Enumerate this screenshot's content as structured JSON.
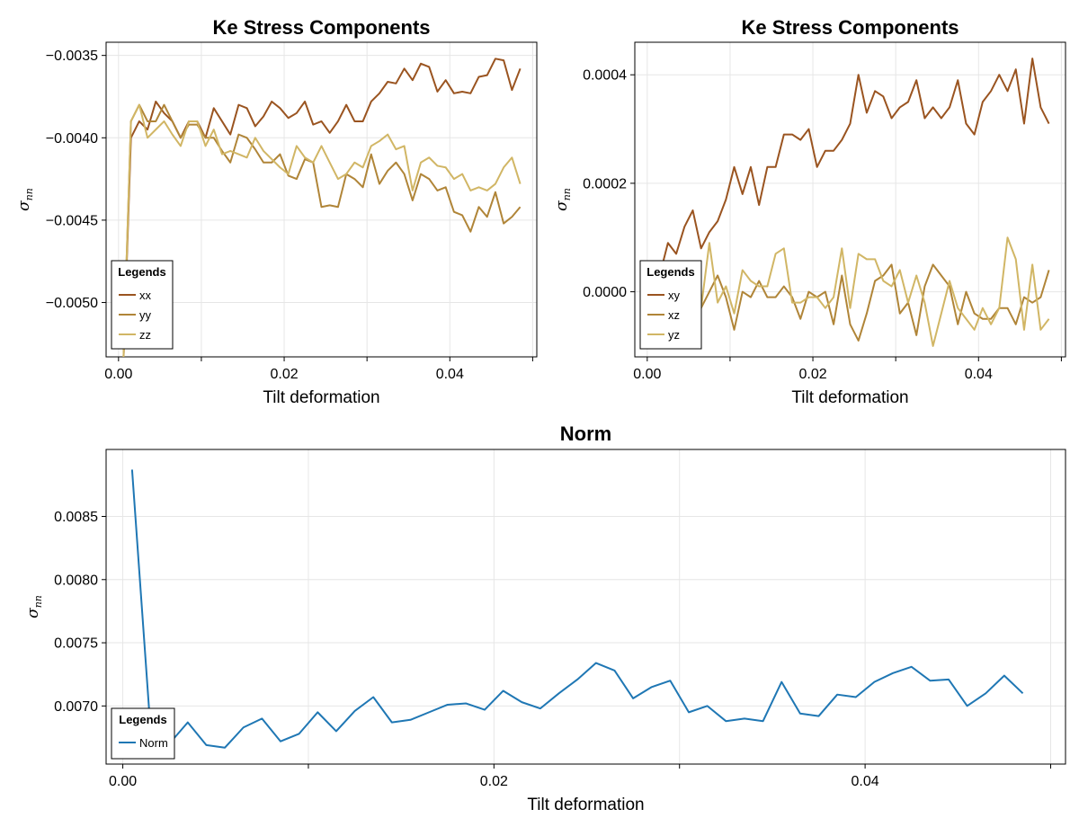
{
  "chart_data": [
    {
      "type": "line",
      "title": "Ke Stress Components",
      "xlabel": "Tilt deformation",
      "ylabel": "σ",
      "ylabel_sub": "nn",
      "xlim": [
        -0.0015,
        0.0505
      ],
      "ylim": [
        -0.00533,
        -0.00342
      ],
      "xticks": [
        0.0,
        0.02,
        0.04
      ],
      "xtick_labels": [
        "0.00",
        "0.02",
        "0.04"
      ],
      "yticks": [
        -0.005,
        -0.0045,
        -0.004,
        -0.0035
      ],
      "ytick_labels": [
        "−0.0050",
        "−0.0045",
        "−0.0040",
        "−0.0035"
      ],
      "grid": true,
      "legend": {
        "title": "Legends",
        "position": "bottom-left"
      },
      "x": [
        0.0005,
        0.0015,
        0.0025,
        0.0035,
        0.0045,
        0.0055,
        0.0065,
        0.0075,
        0.0085,
        0.0095,
        0.0105,
        0.0115,
        0.0125,
        0.0135,
        0.0145,
        0.0155,
        0.0165,
        0.0175,
        0.0185,
        0.0195,
        0.0205,
        0.0215,
        0.0225,
        0.0235,
        0.0245,
        0.0255,
        0.0265,
        0.0275,
        0.0285,
        0.0295,
        0.0305,
        0.0315,
        0.0325,
        0.0335,
        0.0345,
        0.0355,
        0.0365,
        0.0375,
        0.0385,
        0.0395,
        0.0405,
        0.0415,
        0.0425,
        0.0435,
        0.0445,
        0.0455,
        0.0465,
        0.0475,
        0.0485
      ],
      "series": [
        {
          "name": "xx",
          "color": "#9a5420",
          "values": [
            -0.0055,
            -0.004,
            -0.0039,
            -0.00395,
            -0.00378,
            -0.00385,
            -0.0039,
            -0.004,
            -0.0039,
            -0.0039,
            -0.004,
            -0.00382,
            -0.0039,
            -0.00398,
            -0.0038,
            -0.00382,
            -0.00393,
            -0.00387,
            -0.00378,
            -0.00382,
            -0.00388,
            -0.00385,
            -0.00378,
            -0.00392,
            -0.0039,
            -0.00397,
            -0.0039,
            -0.0038,
            -0.0039,
            -0.0039,
            -0.00378,
            -0.00373,
            -0.00366,
            -0.00367,
            -0.00358,
            -0.00365,
            -0.00355,
            -0.00357,
            -0.00372,
            -0.00365,
            -0.00373,
            -0.00372,
            -0.00373,
            -0.00363,
            -0.00362,
            -0.00352,
            -0.00353,
            -0.00371,
            -0.00358
          ]
        },
        {
          "name": "yy",
          "color": "#b08538",
          "values": [
            -0.0055,
            -0.0039,
            -0.0038,
            -0.0039,
            -0.0039,
            -0.0038,
            -0.0039,
            -0.004,
            -0.00392,
            -0.00392,
            -0.004,
            -0.004,
            -0.00408,
            -0.00415,
            -0.00398,
            -0.004,
            -0.00407,
            -0.00415,
            -0.00415,
            -0.0041,
            -0.00423,
            -0.00425,
            -0.00413,
            -0.00415,
            -0.00442,
            -0.00441,
            -0.00442,
            -0.00422,
            -0.00425,
            -0.0043,
            -0.0041,
            -0.00428,
            -0.0042,
            -0.00415,
            -0.00422,
            -0.00438,
            -0.00422,
            -0.00425,
            -0.00432,
            -0.0043,
            -0.00445,
            -0.00447,
            -0.00457,
            -0.00442,
            -0.00448,
            -0.00433,
            -0.00452,
            -0.00448,
            -0.00442
          ]
        },
        {
          "name": "zz",
          "color": "#d1b665",
          "values": [
            -0.0055,
            -0.0039,
            -0.0038,
            -0.004,
            -0.00395,
            -0.0039,
            -0.00398,
            -0.00405,
            -0.0039,
            -0.0039,
            -0.00405,
            -0.00395,
            -0.0041,
            -0.00408,
            -0.0041,
            -0.00412,
            -0.004,
            -0.00408,
            -0.00413,
            -0.00418,
            -0.00422,
            -0.00405,
            -0.00412,
            -0.00415,
            -0.00405,
            -0.00415,
            -0.00425,
            -0.00422,
            -0.00415,
            -0.00418,
            -0.00405,
            -0.00402,
            -0.00398,
            -0.00407,
            -0.00405,
            -0.00432,
            -0.00415,
            -0.00412,
            -0.00417,
            -0.00418,
            -0.00425,
            -0.00422,
            -0.00432,
            -0.0043,
            -0.00432,
            -0.00428,
            -0.00418,
            -0.00412,
            -0.00428
          ]
        }
      ]
    },
    {
      "type": "line",
      "title": "Ke Stress Components",
      "xlabel": "Tilt deformation",
      "ylabel": "σ",
      "ylabel_sub": "nn",
      "xlim": [
        -0.0015,
        0.0505
      ],
      "ylim": [
        -0.00012,
        0.00046
      ],
      "xticks": [
        0.0,
        0.02,
        0.04
      ],
      "xtick_labels": [
        "0.00",
        "0.02",
        "0.04"
      ],
      "yticks": [
        0.0,
        0.0002,
        0.0004
      ],
      "ytick_labels": [
        "0.0000",
        "0.0002",
        "0.0004"
      ],
      "grid": true,
      "legend": {
        "title": "Legends",
        "position": "bottom-left"
      },
      "x": [
        0.0005,
        0.0015,
        0.0025,
        0.0035,
        0.0045,
        0.0055,
        0.0065,
        0.0075,
        0.0085,
        0.0095,
        0.0105,
        0.0115,
        0.0125,
        0.0135,
        0.0145,
        0.0155,
        0.0165,
        0.0175,
        0.0185,
        0.0195,
        0.0205,
        0.0215,
        0.0225,
        0.0235,
        0.0245,
        0.0255,
        0.0265,
        0.0275,
        0.0285,
        0.0295,
        0.0305,
        0.0315,
        0.0325,
        0.0335,
        0.0345,
        0.0355,
        0.0365,
        0.0375,
        0.0385,
        0.0395,
        0.0405,
        0.0415,
        0.0425,
        0.0435,
        0.0445,
        0.0455,
        0.0465,
        0.0475,
        0.0485
      ],
      "series": [
        {
          "name": "xy",
          "color": "#9a5420",
          "values": [
            2e-05,
            3e-05,
            9e-05,
            7e-05,
            0.00012,
            0.00015,
            8e-05,
            0.00011,
            0.00013,
            0.00017,
            0.00023,
            0.00018,
            0.00023,
            0.00016,
            0.00023,
            0.00023,
            0.00029,
            0.00029,
            0.00028,
            0.0003,
            0.00023,
            0.00026,
            0.00026,
            0.00028,
            0.00031,
            0.0004,
            0.00033,
            0.00037,
            0.00036,
            0.00032,
            0.00034,
            0.00035,
            0.00039,
            0.00032,
            0.00034,
            0.00032,
            0.00034,
            0.00039,
            0.00031,
            0.00029,
            0.00035,
            0.00037,
            0.0004,
            0.00037,
            0.00041,
            0.00031,
            0.00043,
            0.00034,
            0.00031
          ]
        },
        {
          "name": "xz",
          "color": "#b08538",
          "values": [
            4e-05,
            1e-05,
            3e-05,
            4e-05,
            2e-05,
            4e-05,
            -3e-05,
            0.0,
            3e-05,
            -1e-05,
            -7e-05,
            0.0,
            -1e-05,
            2e-05,
            -1e-05,
            -1e-05,
            1e-05,
            -1e-05,
            -5e-05,
            0.0,
            -1e-05,
            0.0,
            -6e-05,
            3e-05,
            -6e-05,
            -9e-05,
            -4e-05,
            2e-05,
            3e-05,
            5e-05,
            -4e-05,
            -2e-05,
            -8e-05,
            1e-05,
            5e-05,
            3e-05,
            1e-05,
            -6e-05,
            0.0,
            -4e-05,
            -5e-05,
            -5e-05,
            -3e-05,
            -3e-05,
            -6e-05,
            -1e-05,
            -2e-05,
            -1e-05,
            4e-05
          ]
        },
        {
          "name": "yz",
          "color": "#d1b665",
          "values": [
            4e-05,
            3e-05,
            2e-05,
            5e-05,
            1e-05,
            1e-05,
            -3e-05,
            9e-05,
            -2e-05,
            1e-05,
            -4e-05,
            4e-05,
            2e-05,
            1e-05,
            1e-05,
            7e-05,
            8e-05,
            -2e-05,
            -2e-05,
            -1e-05,
            -1e-05,
            -3e-05,
            -1e-05,
            8e-05,
            -3e-05,
            7e-05,
            6e-05,
            6e-05,
            2e-05,
            1e-05,
            4e-05,
            -2e-05,
            3e-05,
            -2e-05,
            -0.0001,
            -4e-05,
            2e-05,
            -3e-05,
            -5e-05,
            -7e-05,
            -3e-05,
            -6e-05,
            -3e-05,
            0.0001,
            6e-05,
            -7e-05,
            5e-05,
            -7e-05,
            -5e-05
          ]
        }
      ]
    },
    {
      "type": "line",
      "title": "Norm",
      "xlabel": "Tilt deformation",
      "ylabel": "σ",
      "ylabel_sub": "nn",
      "xlim": [
        -0.0009,
        0.0508
      ],
      "ylim": [
        0.00654,
        0.00903
      ],
      "xticks": [
        0.0,
        0.02,
        0.04
      ],
      "xtick_labels": [
        "0.00",
        "0.02",
        "0.04"
      ],
      "yticks": [
        0.007,
        0.0075,
        0.008,
        0.0085
      ],
      "ytick_labels": [
        "0.0070",
        "0.0075",
        "0.0080",
        "0.0085"
      ],
      "grid": true,
      "legend": {
        "title": "Legends",
        "position": "bottom-left"
      },
      "x": [
        0.0005,
        0.0015,
        0.0025,
        0.0035,
        0.0045,
        0.0055,
        0.0065,
        0.0075,
        0.0085,
        0.0095,
        0.0105,
        0.0115,
        0.0125,
        0.0135,
        0.0145,
        0.0155,
        0.0165,
        0.0175,
        0.0185,
        0.0195,
        0.0205,
        0.0215,
        0.0225,
        0.0235,
        0.0245,
        0.0255,
        0.0265,
        0.0275,
        0.0285,
        0.0295,
        0.0305,
        0.0315,
        0.0325,
        0.0335,
        0.0345,
        0.0355,
        0.0365,
        0.0375,
        0.0385,
        0.0395,
        0.0405,
        0.0415,
        0.0425,
        0.0435,
        0.0445,
        0.0455,
        0.0465,
        0.0475,
        0.0485
      ],
      "series": [
        {
          "name": "Norm",
          "color": "#1f77b4",
          "values": [
            0.00887,
            0.0068,
            0.0067,
            0.00687,
            0.00669,
            0.00667,
            0.00683,
            0.0069,
            0.00672,
            0.00678,
            0.00695,
            0.0068,
            0.00696,
            0.00707,
            0.00687,
            0.00689,
            0.00695,
            0.00701,
            0.00702,
            0.00697,
            0.00712,
            0.00703,
            0.00698,
            0.0071,
            0.00721,
            0.00734,
            0.00728,
            0.00706,
            0.00715,
            0.0072,
            0.00695,
            0.007,
            0.00688,
            0.0069,
            0.00688,
            0.00719,
            0.00694,
            0.00692,
            0.00709,
            0.00707,
            0.00719,
            0.00726,
            0.00731,
            0.0072,
            0.00721,
            0.007,
            0.0071,
            0.00724,
            0.0071
          ]
        }
      ]
    }
  ]
}
